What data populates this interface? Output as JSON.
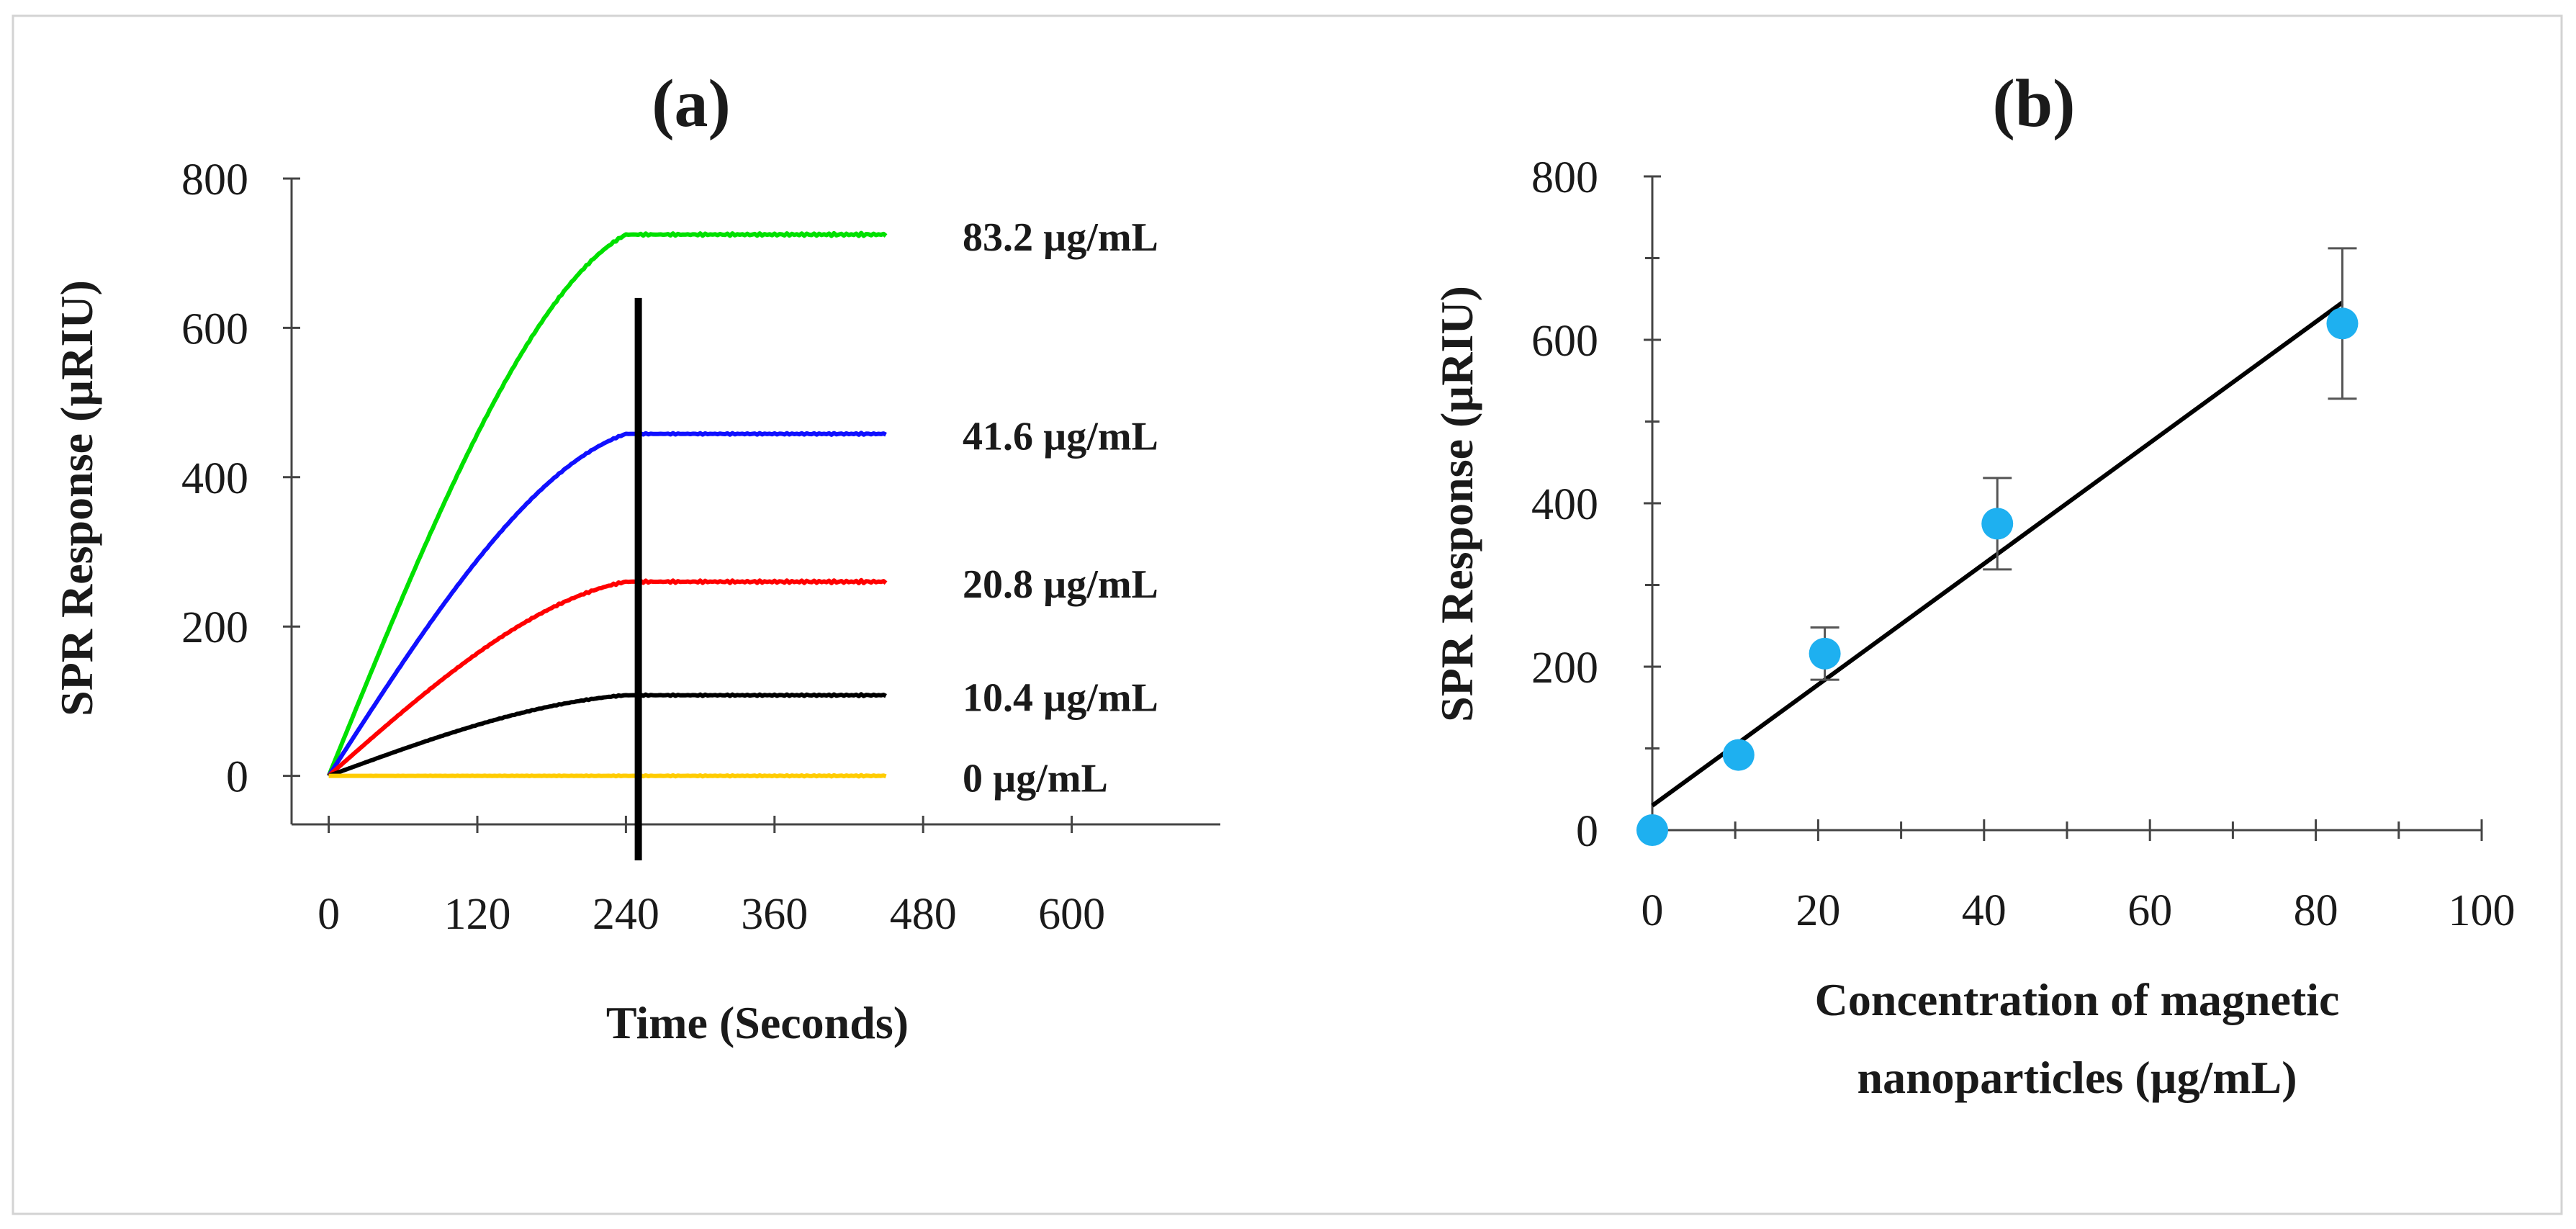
{
  "chart_data": [
    {
      "panel": "(a)",
      "type": "line",
      "xlabel": "Time (Seconds)",
      "ylabel": "SPR Response (µRIU)",
      "xlim": [
        -30,
        720
      ],
      "ylim": [
        -65,
        800
      ],
      "xticks": [
        0,
        120,
        240,
        360,
        480,
        600
      ],
      "yticks": [
        0,
        200,
        400,
        600,
        800
      ],
      "injection_end_time": 250,
      "series": [
        {
          "name": "83.2 µg/mL",
          "color": "#00e000",
          "plateau": 725,
          "end_time": 240,
          "x_end": 450,
          "noise": 2.5
        },
        {
          "name": "41.6 µg/mL",
          "color": "#1010ff",
          "plateau": 458,
          "end_time": 240,
          "x_end": 450,
          "noise": 1.5
        },
        {
          "name": "20.8 µg/mL",
          "color": "#ff0000",
          "plateau": 260,
          "end_time": 240,
          "x_end": 450,
          "noise": 2.5
        },
        {
          "name": "10.4 µg/mL",
          "color": "#000000",
          "plateau": 108,
          "end_time": 240,
          "x_end": 450,
          "noise": 1.5
        },
        {
          "name": "0 µg/mL",
          "color": "#ffcc00",
          "plateau": 0,
          "end_time": 240,
          "x_end": 450,
          "noise": 1.0
        }
      ]
    },
    {
      "panel": "(b)",
      "type": "scatter",
      "xlabel_line1": "Concentration of magnetic",
      "xlabel_line2": "nanoparticles (µg/mL)",
      "ylabel": "SPR Response (µRIU)",
      "xlim": [
        0,
        100
      ],
      "ylim": [
        0,
        800
      ],
      "xticks": [
        0,
        20,
        40,
        60,
        80,
        100
      ],
      "yticks": [
        0,
        200,
        400,
        600,
        800
      ],
      "marker_color": "#1eb0f0",
      "points": [
        {
          "x": 0,
          "y": 0,
          "err": 0
        },
        {
          "x": 10.4,
          "y": 92,
          "err": 0
        },
        {
          "x": 20.8,
          "y": 216,
          "err": 32
        },
        {
          "x": 41.6,
          "y": 375,
          "err": 56
        },
        {
          "x": 83.2,
          "y": 620,
          "err": 92
        }
      ],
      "fit": {
        "slope": 7.4,
        "intercept": 30,
        "x_range": [
          0,
          83.2
        ]
      }
    }
  ]
}
